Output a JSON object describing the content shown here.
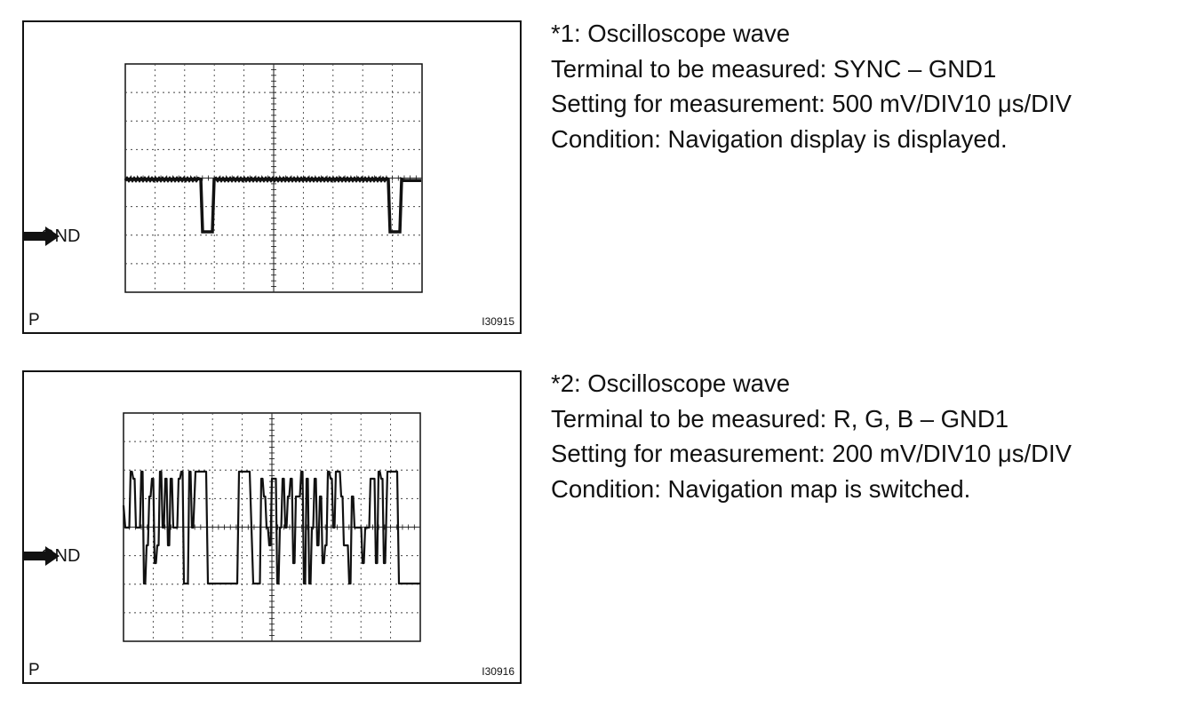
{
  "figures": [
    {
      "id": "fig1",
      "gnd_label": "GND",
      "p_label": "P",
      "code": "I30915",
      "title": "*1: Oscilloscope wave",
      "terminal": "Terminal to be measured: SYNC – GND1",
      "setting": "Setting for measurement: 500 mV/DIV10 μs/DIV",
      "condition": "Condition: Navigation display is displayed."
    },
    {
      "id": "fig2",
      "gnd_label": "GND",
      "p_label": "P",
      "code": "I30916",
      "title": "*2: Oscilloscope wave",
      "terminal": "Terminal to be measured: R, G, B – GND1",
      "setting": "Setting for measurement: 200 mV/DIV10 μs/DIV",
      "condition": "Condition: Navigation map is switched."
    }
  ],
  "colors": {
    "ink": "#111111",
    "grid": "#444444"
  }
}
